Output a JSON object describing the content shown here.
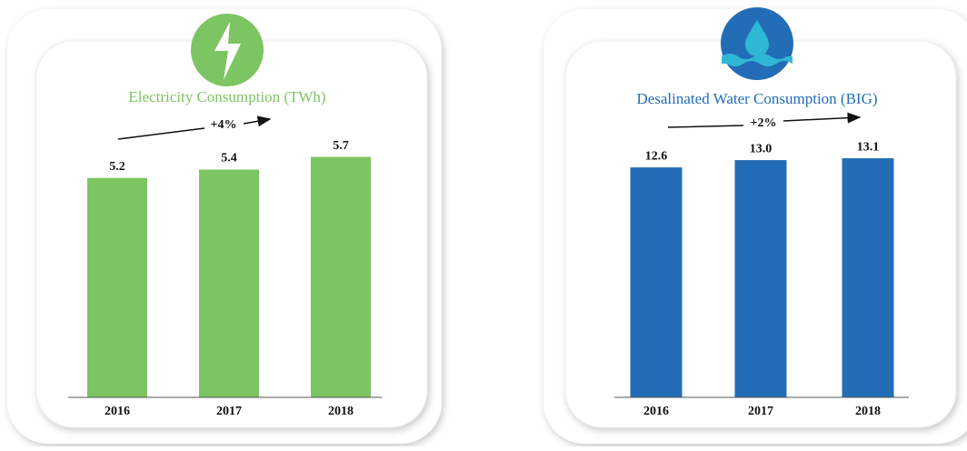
{
  "chart_data": [
    {
      "type": "bar",
      "title": "Electricity Consumption (TWh)",
      "annotation": "+4%",
      "categories": [
        "2016",
        "2017",
        "2018"
      ],
      "values": [
        5.2,
        5.4,
        5.7
      ],
      "color": "#7dc462",
      "ylim": [
        0,
        6.1
      ]
    },
    {
      "type": "bar",
      "title": "Desalinated Water Consumption (BIG)",
      "annotation": "+2%",
      "categories": [
        "2016",
        "2017",
        "2018"
      ],
      "values": [
        12.6,
        13.0,
        13.1
      ],
      "value_labels": [
        "12.6",
        "13.0",
        "13.1"
      ],
      "color": "#236db6",
      "ylim": [
        0,
        14.1
      ]
    }
  ]
}
